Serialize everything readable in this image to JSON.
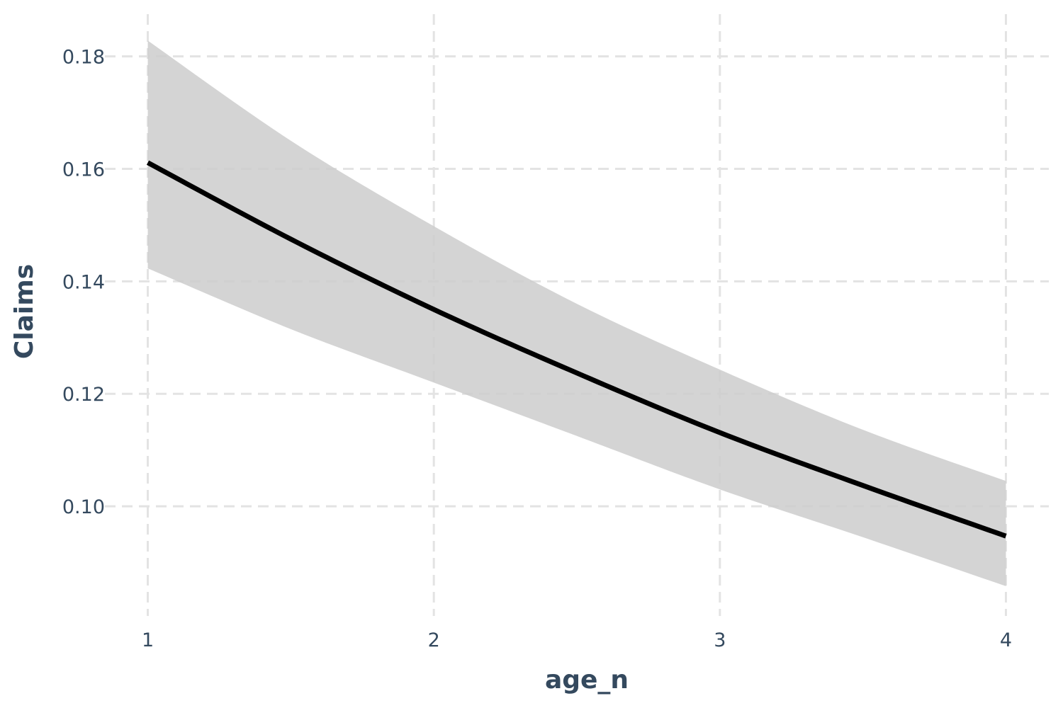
{
  "chart_data": {
    "type": "line",
    "title": "",
    "xlabel": "age_n",
    "ylabel": "Claims",
    "xlim": [
      0.85,
      4.15
    ],
    "ylim": [
      0.0805,
      0.1875
    ],
    "x_ticks": [
      1,
      2,
      3,
      4
    ],
    "x_tick_labels": [
      "1",
      "2",
      "3",
      "4"
    ],
    "y_ticks": [
      0.1,
      0.12,
      0.14,
      0.16,
      0.18
    ],
    "y_tick_labels": [
      "0.10",
      "0.12",
      "0.14",
      "0.16",
      "0.18"
    ],
    "grid": true,
    "legend": "none",
    "colors": {
      "line": "#000000",
      "ribbon": "#cccccc",
      "grid": "#e3e3e3",
      "text": "#34495e"
    },
    "series": [
      {
        "x": [
          1.0,
          1.5,
          2.0,
          2.5,
          3.0,
          3.5,
          4.0
        ],
        "y": [
          0.1611,
          0.1475,
          0.135,
          0.1237,
          0.1131,
          0.1037,
          0.0947
        ],
        "lower": [
          0.1423,
          0.1315,
          0.122,
          0.1125,
          0.103,
          0.0945,
          0.0858
        ],
        "upper": [
          0.1828,
          0.165,
          0.1498,
          0.136,
          0.1243,
          0.1136,
          0.1045
        ]
      }
    ]
  }
}
